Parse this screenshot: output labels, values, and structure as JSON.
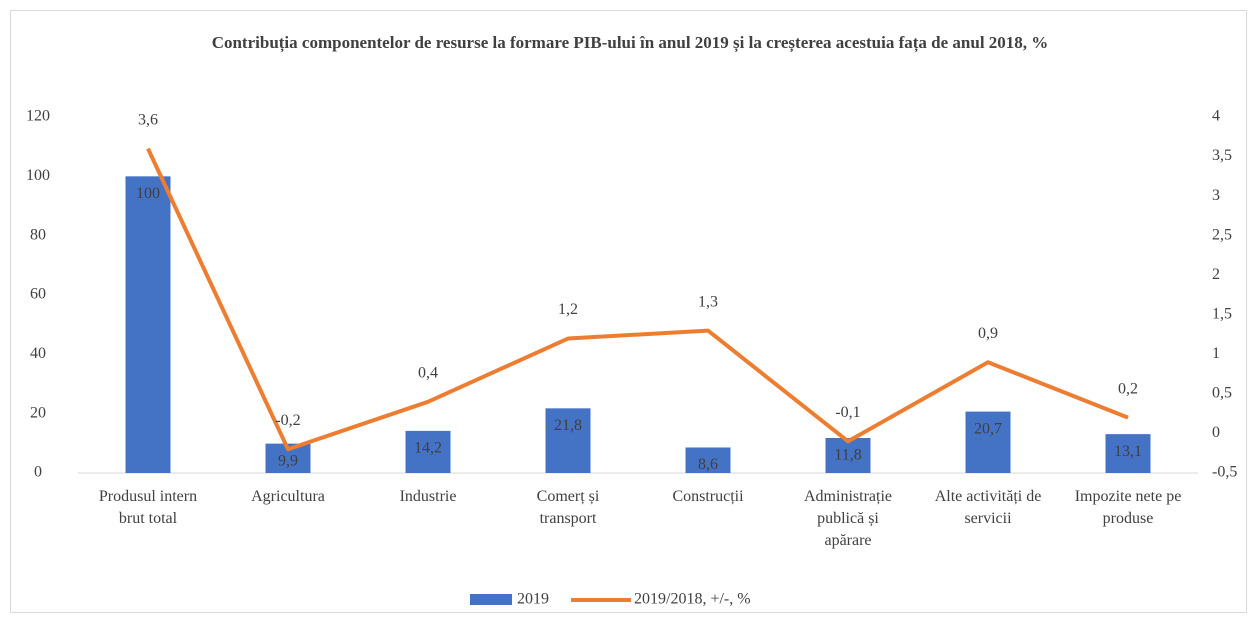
{
  "chart_data": {
    "type": "combo",
    "title": "Contribuția  componentelor de resurse la formare PIB-ului în anul 2019 și la creșterea acestuia fața de anul 2018, %",
    "categories": [
      "Produsul intern brut total",
      "Agricultura",
      "Industrie",
      "Comerț și transport",
      "Construcții",
      "Administrație publică și apărare",
      "Alte activități de servicii",
      "Impozite nete pe produse"
    ],
    "series": [
      {
        "name": "2019",
        "type": "bar",
        "color": "#4472c4",
        "values": [
          100,
          9.9,
          14.2,
          21.8,
          8.6,
          11.8,
          20.7,
          13.1
        ],
        "value_labels": [
          "100",
          "9,9",
          "14,2",
          "21,8",
          "8,6",
          "11,8",
          "20,7",
          "13,1"
        ]
      },
      {
        "name": "2019/2018, +/-, %",
        "type": "line",
        "axis": "y2",
        "color": "#ed7d31",
        "values": [
          3.6,
          -0.2,
          0.4,
          1.2,
          1.3,
          -0.1,
          0.9,
          0.2
        ],
        "value_labels": [
          "3,6",
          "-0,2",
          "0,4",
          "1,2",
          "1,3",
          "-0,1",
          "0,9",
          "0,2"
        ]
      }
    ],
    "ylim": [
      0,
      120
    ],
    "yticks": [
      0,
      20,
      40,
      60,
      80,
      100,
      120
    ],
    "y2lim": [
      -0.5,
      4
    ],
    "y2ticks": [
      {
        "value": -0.5,
        "label": "-0,5"
      },
      0,
      {
        "value": 0.5,
        "label": "0,5"
      },
      1,
      {
        "value": 1.5,
        "label": "1,5"
      },
      2,
      {
        "value": 2.5,
        "label": "2,5"
      },
      3,
      {
        "value": 3.5,
        "label": "3,5"
      },
      4
    ],
    "legend": "bottom"
  }
}
